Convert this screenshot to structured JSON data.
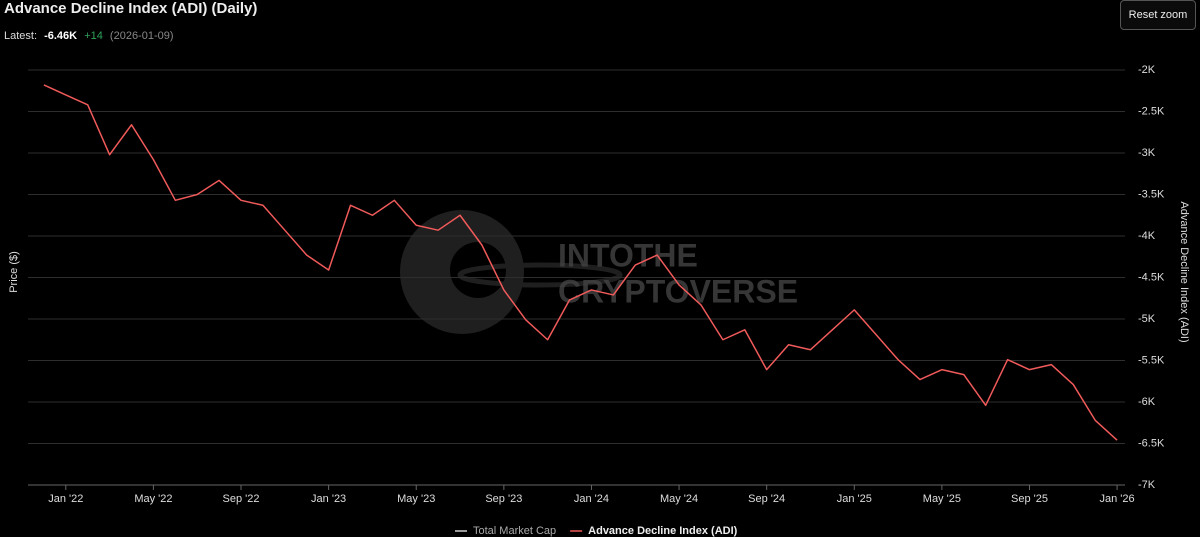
{
  "chart_data": {
    "type": "line",
    "title": "Advance Decline Index (ADI) (Daily)",
    "latest_label": "Latest:",
    "latest_value": "-6.46K",
    "latest_change": "+14",
    "latest_date": "(2026-01-09)",
    "reset_button": "Reset zoom",
    "watermark": [
      "INTOTHE",
      "CRYPTOVERSE"
    ],
    "y_label": "Price ($)",
    "y2_label": "Advance Decline Index (ADI)",
    "x": [
      "2021-12",
      "2022-01",
      "2022-02",
      "2022-03",
      "2022-04",
      "2022-05",
      "2022-06",
      "2022-07",
      "2022-08",
      "2022-09",
      "2022-10",
      "2022-11",
      "2022-12",
      "2023-01",
      "2023-02",
      "2023-03",
      "2023-04",
      "2023-05",
      "2023-06",
      "2023-07",
      "2023-08",
      "2023-09",
      "2023-10",
      "2023-11",
      "2023-12",
      "2024-01",
      "2024-02",
      "2024-03",
      "2024-04",
      "2024-05",
      "2024-06",
      "2024-07",
      "2024-08",
      "2024-09",
      "2024-10",
      "2024-11",
      "2024-12",
      "2025-01",
      "2025-02",
      "2025-03",
      "2025-04",
      "2025-05",
      "2025-06",
      "2025-07",
      "2025-08",
      "2025-09",
      "2025-10",
      "2025-11",
      "2025-12",
      "2026-01"
    ],
    "xlim": [
      "2021-11",
      "2026-02"
    ],
    "xticks": [
      {
        "value": "2022-01",
        "label": "Jan '22"
      },
      {
        "value": "2022-05",
        "label": "May '22"
      },
      {
        "value": "2022-09",
        "label": "Sep '22"
      },
      {
        "value": "2023-01",
        "label": "Jan '23"
      },
      {
        "value": "2023-05",
        "label": "May '23"
      },
      {
        "value": "2023-09",
        "label": "Sep '23"
      },
      {
        "value": "2024-01",
        "label": "Jan '24"
      },
      {
        "value": "2024-05",
        "label": "May '24"
      },
      {
        "value": "2024-09",
        "label": "Sep '24"
      },
      {
        "value": "2025-01",
        "label": "Jan '25"
      },
      {
        "value": "2025-05",
        "label": "May '25"
      },
      {
        "value": "2025-09",
        "label": "Sep '25"
      },
      {
        "value": "2026-01",
        "label": "Jan '26"
      }
    ],
    "y2lim": [
      -7000,
      -2000
    ],
    "y2ticks": [
      {
        "value": -2000,
        "label": "-2K"
      },
      {
        "value": -2500,
        "label": "-2.5K"
      },
      {
        "value": -3000,
        "label": "-3K"
      },
      {
        "value": -3500,
        "label": "-3.5K"
      },
      {
        "value": -4000,
        "label": "-4K"
      },
      {
        "value": -4500,
        "label": "-4.5K"
      },
      {
        "value": -5000,
        "label": "-5K"
      },
      {
        "value": -5500,
        "label": "-5.5K"
      },
      {
        "value": -6000,
        "label": "-6K"
      },
      {
        "value": -6500,
        "label": "-6.5K"
      },
      {
        "value": -7000,
        "label": "-7K"
      }
    ],
    "grid": true,
    "legend": "bottom",
    "series": [
      {
        "name": "Total Market Cap",
        "color": "#cccccc",
        "values": [
          null,
          null,
          null,
          null,
          null,
          null,
          null,
          null,
          null,
          null,
          null,
          null,
          null,
          null,
          null,
          null,
          null,
          null,
          null,
          null,
          null,
          null,
          null,
          null,
          null,
          null,
          null,
          null,
          null,
          null,
          null,
          null,
          null,
          null,
          null,
          null,
          null,
          null,
          null,
          null,
          null,
          null,
          null,
          null,
          null,
          null,
          null,
          null,
          null,
          null
        ]
      },
      {
        "name": "Advance Decline Index (ADI)",
        "color": "#f05a5a",
        "axis": "y2",
        "values": [
          -2180,
          -2300,
          -2420,
          -3020,
          -2660,
          -3080,
          -3570,
          -3500,
          -3330,
          -3570,
          -3630,
          -3930,
          -4230,
          -4410,
          -3630,
          -3750,
          -3570,
          -3870,
          -3930,
          -3750,
          -4110,
          -4650,
          -5010,
          -5250,
          -4770,
          -4650,
          -4710,
          -4350,
          -4230,
          -4590,
          -4830,
          -5250,
          -5130,
          -5610,
          -5310,
          -5370,
          -5130,
          -4890,
          -5190,
          -5490,
          -5730,
          -5610,
          -5670,
          -6040,
          -5490,
          -5610,
          -5550,
          -5790,
          -6220,
          -6460
        ]
      }
    ]
  }
}
